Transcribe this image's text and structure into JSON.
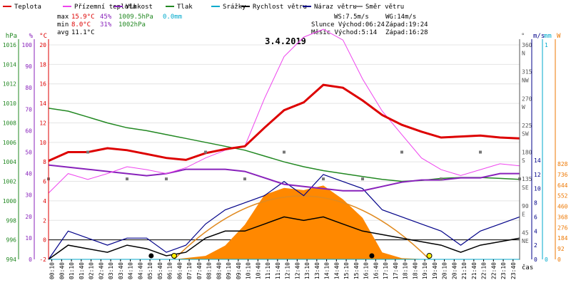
{
  "chart_data": {
    "type": "line",
    "title": "3.4.2019",
    "legend": [
      {
        "label": "Teplota",
        "color": "#dd0000"
      },
      {
        "label": "Přízemní teplota",
        "color": "#ee44ee"
      },
      {
        "label": "Vlhkost",
        "color": "#8822bb"
      },
      {
        "label": "Tlak",
        "color": "#228822"
      },
      {
        "label": "Srážky",
        "color": "#00aacc"
      },
      {
        "label": "Rychlost větru",
        "color": "#000000"
      },
      {
        "label": "Náraz větru",
        "color": "#000088"
      },
      {
        "label": "Směr větru",
        "color": "#888888"
      }
    ],
    "stats": {
      "max_label": "max",
      "max_temp": "15.9°C",
      "max_hum": "45%",
      "max_press": "1009.5hPa",
      "max_rain": "0.0mm",
      "min_label": "min",
      "min_temp": "8.0°C",
      "min_hum": "31%",
      "min_press": "1002hPa",
      "avg_label": "avg",
      "avg_temp": "11.1°C"
    },
    "info": {
      "ws": "WS:7.5m/s",
      "wg": "WG:14m/s",
      "sun": "Slunce Východ:06:24",
      "sun_set": "Západ:19:24",
      "moon": "Měsíc Východ:5:14",
      "moon_set": "Západ:16:28"
    },
    "axes": {
      "pressure": {
        "unit": "hPa",
        "ticks": [
          "1016",
          "1014",
          "1012",
          "1010",
          "1008",
          "1006",
          "1004",
          "1002",
          "1000",
          "998",
          "996",
          "994"
        ]
      },
      "humidity": {
        "unit": "%",
        "ticks": [
          "100",
          "90",
          "80",
          "70",
          "60",
          "50",
          "40",
          "30",
          "20",
          "10",
          "0"
        ]
      },
      "temperature": {
        "unit": "°C",
        "ticks": [
          "20",
          "18",
          "16",
          "14",
          "12",
          "10",
          "8",
          "6",
          "4",
          "2",
          "0",
          "-2"
        ]
      },
      "direction": {
        "unit": "°",
        "ticks": [
          "360",
          "N",
          "315",
          "NW",
          "270",
          "W",
          "225",
          "SW",
          "180",
          "S",
          "135",
          "SE",
          "90",
          "E",
          "45",
          "NE"
        ]
      },
      "wind": {
        "unit": "m/s",
        "ticks": [
          "14",
          "12",
          "10",
          "8",
          "6",
          "4",
          "2",
          "0"
        ]
      },
      "rain": {
        "unit": "mm",
        "ticks": [
          "1",
          "0"
        ]
      },
      "solar": {
        "unit": "W",
        "ticks": [
          "828",
          "736",
          "644",
          "552",
          "460",
          "368",
          "276",
          "184",
          "92",
          "0"
        ]
      },
      "time_label": "čas",
      "time_ticks": [
        "00:10",
        "00:40",
        "01:10",
        "01:40",
        "02:10",
        "02:40",
        "03:10",
        "03:40",
        "04:10",
        "04:40",
        "05:10",
        "05:40",
        "06:10",
        "06:40",
        "07:10",
        "07:40",
        "08:10",
        "08:40",
        "09:10",
        "09:40",
        "10:10",
        "10:40",
        "11:10",
        "11:40",
        "12:10",
        "12:40",
        "13:10",
        "13:40",
        "14:10",
        "14:40",
        "15:10",
        "15:40",
        "16:10",
        "16:40",
        "17:10",
        "17:40",
        "18:10",
        "18:40",
        "19:10",
        "19:40",
        "20:10",
        "20:40",
        "21:10",
        "21:40",
        "22:10",
        "22:40",
        "23:10",
        "23:40"
      ]
    },
    "series": [
      {
        "name": "Teplota",
        "unit": "°C",
        "x_hours": [
          0,
          1,
          2,
          3,
          4,
          5,
          6,
          7,
          8,
          9,
          10,
          11,
          12,
          13,
          14,
          15,
          16,
          17,
          18,
          19,
          20,
          21,
          22,
          23,
          24
        ],
        "values": [
          8.1,
          9.0,
          9.0,
          9.4,
          9.2,
          8.8,
          8.4,
          8.2,
          8.9,
          9.3,
          9.6,
          11.5,
          13.3,
          14.1,
          15.9,
          15.6,
          14.3,
          12.8,
          11.8,
          11.1,
          10.5,
          10.6,
          10.7,
          10.5,
          10.4
        ]
      },
      {
        "name": "Přízemní teplota",
        "unit": "°C",
        "x_hours": [
          0,
          1,
          2,
          3,
          4,
          5,
          6,
          7,
          8,
          9,
          10,
          11,
          12,
          13,
          14,
          15,
          16,
          17,
          18,
          19,
          20,
          21,
          22,
          23,
          24
        ],
        "values": [
          4.8,
          6.8,
          6.2,
          6.8,
          7.5,
          7.2,
          6.8,
          7.4,
          8.4,
          9.2,
          9.6,
          14.5,
          18.8,
          20.8,
          21.6,
          20.5,
          16.5,
          13.2,
          10.8,
          8.4,
          7.2,
          6.6,
          7.2,
          7.8,
          7.6
        ]
      },
      {
        "name": "Vlhkost",
        "unit": "%",
        "x_hours": [
          0,
          1,
          2,
          3,
          4,
          5,
          6,
          7,
          8,
          9,
          10,
          11,
          12,
          13,
          14,
          15,
          16,
          17,
          18,
          19,
          20,
          21,
          22,
          23,
          24
        ],
        "values": [
          44,
          43,
          42,
          41,
          40,
          39,
          40,
          42,
          42,
          42,
          41,
          38,
          35,
          34,
          33,
          32,
          32,
          34,
          36,
          37,
          37,
          38,
          38,
          40,
          40
        ]
      },
      {
        "name": "Tlak",
        "unit": "hPa",
        "x_hours": [
          0,
          1,
          2,
          3,
          4,
          5,
          6,
          7,
          8,
          9,
          10,
          11,
          12,
          13,
          14,
          15,
          16,
          17,
          18,
          19,
          20,
          21,
          22,
          23,
          24
        ],
        "values": [
          1009.5,
          1009.2,
          1008.6,
          1008.0,
          1007.5,
          1007.2,
          1006.8,
          1006.4,
          1006.0,
          1005.6,
          1005.2,
          1004.6,
          1004.0,
          1003.5,
          1003.1,
          1002.8,
          1002.5,
          1002.2,
          1002.0,
          1002.1,
          1002.3,
          1002.4,
          1002.4,
          1002.3,
          1002.2
        ]
      },
      {
        "name": "Srážky",
        "unit": "mm",
        "x_hours": [
          0,
          24
        ],
        "values": [
          0.0,
          0.0
        ]
      },
      {
        "name": "Rychlost větru",
        "unit": "m/s",
        "x_hours": [
          0,
          1,
          2,
          3,
          4,
          5,
          6,
          7,
          8,
          9,
          10,
          11,
          12,
          13,
          14,
          15,
          16,
          17,
          18,
          19,
          20,
          21,
          22,
          23,
          24
        ],
        "values": [
          0,
          2,
          1.5,
          1,
          2,
          1.5,
          0.5,
          1,
          3,
          4,
          4,
          5,
          6,
          5.5,
          6,
          5,
          4,
          3.5,
          3,
          2.5,
          2,
          1,
          2,
          2.5,
          3
        ]
      },
      {
        "name": "Náraz větru",
        "unit": "m/s",
        "x_hours": [
          0,
          1,
          2,
          3,
          4,
          5,
          6,
          7,
          8,
          9,
          10,
          11,
          12,
          13,
          14,
          15,
          16,
          17,
          18,
          19,
          20,
          21,
          22,
          23,
          24
        ],
        "values": [
          0,
          4,
          3,
          2,
          3,
          3,
          1,
          2,
          5,
          7,
          8,
          9,
          11,
          9,
          12,
          11,
          10,
          7,
          6,
          5,
          4,
          2,
          4,
          5,
          6
        ]
      },
      {
        "name": "Směr větru",
        "unit": "°",
        "x_hours": [
          0,
          2,
          4,
          6,
          8,
          10,
          12,
          14,
          16,
          18,
          20,
          22,
          24
        ],
        "values": [
          135,
          180,
          135,
          135,
          180,
          135,
          180,
          135,
          135,
          180,
          135,
          180,
          135
        ]
      },
      {
        "name": "Sluneční záření",
        "unit": "W",
        "x_hours": [
          6.4,
          8,
          9,
          10,
          11,
          12,
          13,
          14,
          15,
          16,
          17,
          18,
          19.4
        ],
        "values": [
          0,
          30,
          120,
          300,
          560,
          620,
          600,
          640,
          520,
          360,
          60,
          10,
          0
        ]
      }
    ],
    "sun_markers_hours": [
      6.4,
      19.4
    ],
    "moon_markers_hours": [
      5.23,
      16.47
    ]
  }
}
